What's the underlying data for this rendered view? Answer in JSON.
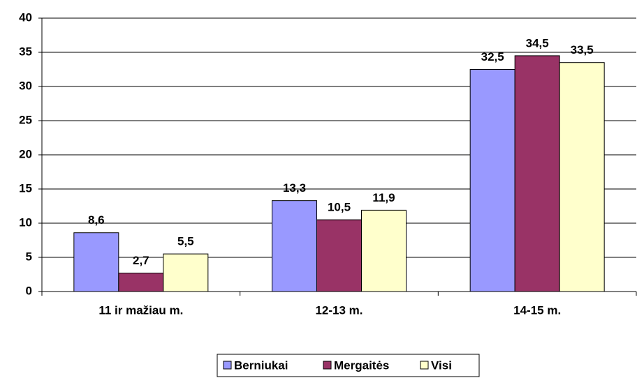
{
  "chart_data": {
    "type": "bar",
    "categories": [
      "11 ir mažiau m.",
      "12-13 m.",
      "14-15 m."
    ],
    "series": [
      {
        "name": "Berniukai",
        "color": "#9999ff",
        "values": [
          8.6,
          13.3,
          32.5
        ],
        "value_labels": [
          "8,6",
          "13,3",
          "32,5"
        ]
      },
      {
        "name": "Mergaitės",
        "color": "#993366",
        "values": [
          2.7,
          10.5,
          34.5
        ],
        "value_labels": [
          "2,7",
          "10,5",
          "34,5"
        ]
      },
      {
        "name": "Visi",
        "color": "#ffffcc",
        "values": [
          5.5,
          11.9,
          33.5
        ],
        "value_labels": [
          "5,5",
          "11,9",
          "33,5"
        ]
      }
    ],
    "ylim": [
      0,
      40
    ],
    "yticks": [
      0,
      5,
      10,
      15,
      20,
      25,
      30,
      35,
      40
    ],
    "grid": true,
    "legend": "bottom"
  }
}
